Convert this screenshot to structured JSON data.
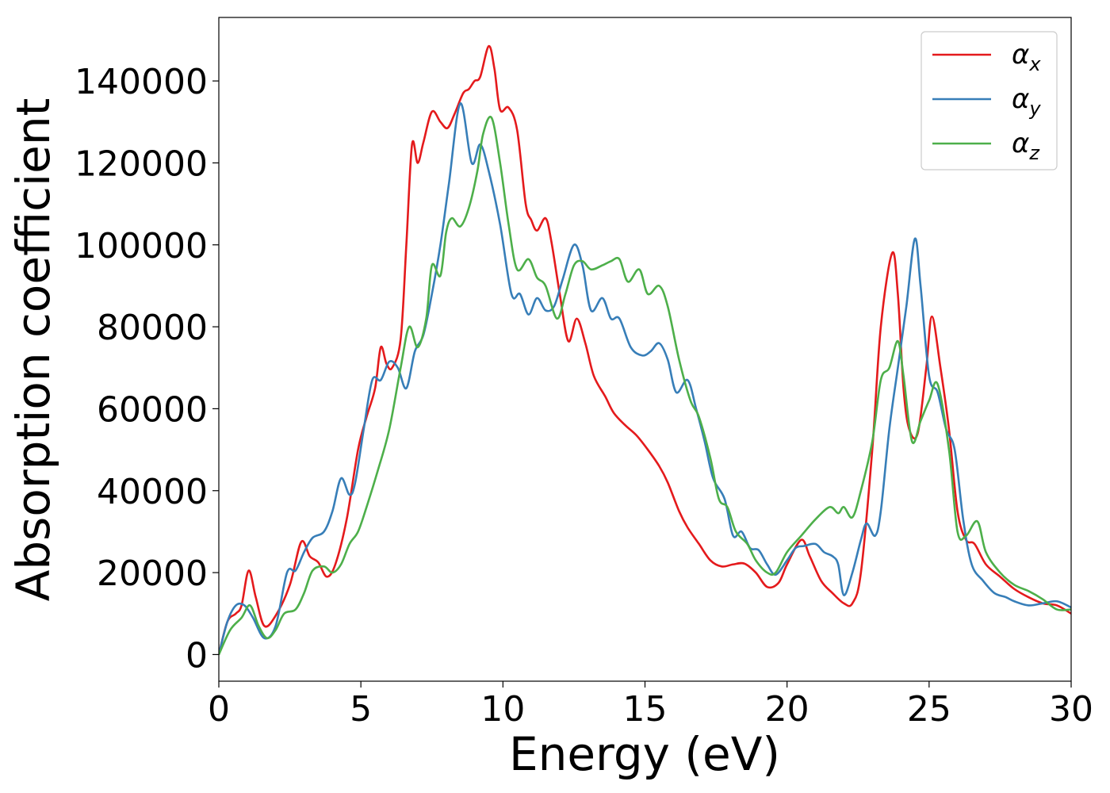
{
  "chart_data": {
    "type": "line",
    "xlabel": "Energy (eV)",
    "ylabel": "Absorption coefficient",
    "xlim": [
      0,
      30
    ],
    "ylim": [
      -6500,
      155500
    ],
    "xticks": [
      0,
      5,
      10,
      15,
      20,
      25,
      30
    ],
    "yticks": [
      0,
      20000,
      40000,
      60000,
      80000,
      100000,
      120000,
      140000
    ],
    "grid": false,
    "legend_position": "top-right",
    "series": [
      {
        "name": "αx",
        "symbol": "α",
        "subscript": "x",
        "color": "#e41a1c",
        "points": [
          [
            0,
            0
          ],
          [
            0.3,
            8000
          ],
          [
            0.6,
            10000
          ],
          [
            0.8,
            12000
          ],
          [
            1.05,
            20500
          ],
          [
            1.3,
            14000
          ],
          [
            1.6,
            7000
          ],
          [
            2.0,
            9500
          ],
          [
            2.5,
            17000
          ],
          [
            2.9,
            27500
          ],
          [
            3.2,
            24000
          ],
          [
            3.5,
            22500
          ],
          [
            3.8,
            19000
          ],
          [
            4.1,
            22000
          ],
          [
            4.5,
            33000
          ],
          [
            4.9,
            50000
          ],
          [
            5.2,
            58000
          ],
          [
            5.5,
            65000
          ],
          [
            5.7,
            75000
          ],
          [
            5.9,
            71000
          ],
          [
            6.1,
            70000
          ],
          [
            6.4,
            77000
          ],
          [
            6.6,
            100000
          ],
          [
            6.8,
            124500
          ],
          [
            7.0,
            120000
          ],
          [
            7.2,
            125000
          ],
          [
            7.5,
            132500
          ],
          [
            7.8,
            130000
          ],
          [
            8.05,
            128500
          ],
          [
            8.3,
            132000
          ],
          [
            8.6,
            137000
          ],
          [
            8.8,
            138000
          ],
          [
            9.0,
            140000
          ],
          [
            9.2,
            141000
          ],
          [
            9.5,
            148500
          ],
          [
            9.7,
            143000
          ],
          [
            9.9,
            133000
          ],
          [
            10.2,
            133500
          ],
          [
            10.5,
            128000
          ],
          [
            10.8,
            110000
          ],
          [
            11.0,
            106000
          ],
          [
            11.2,
            103500
          ],
          [
            11.5,
            106500
          ],
          [
            11.7,
            101000
          ],
          [
            12.0,
            88000
          ],
          [
            12.3,
            76500
          ],
          [
            12.6,
            82000
          ],
          [
            12.9,
            76000
          ],
          [
            13.2,
            68000
          ],
          [
            13.6,
            63000
          ],
          [
            13.9,
            59000
          ],
          [
            14.3,
            56000
          ],
          [
            14.7,
            53500
          ],
          [
            15.1,
            50000
          ],
          [
            15.5,
            46000
          ],
          [
            15.8,
            42000
          ],
          [
            16.2,
            35000
          ],
          [
            16.5,
            31000
          ],
          [
            16.9,
            27000
          ],
          [
            17.3,
            23000
          ],
          [
            17.7,
            21500
          ],
          [
            18.1,
            22000
          ],
          [
            18.5,
            22200
          ],
          [
            18.9,
            20000
          ],
          [
            19.3,
            16500
          ],
          [
            19.7,
            17500
          ],
          [
            20.0,
            22000
          ],
          [
            20.5,
            28000
          ],
          [
            20.8,
            24000
          ],
          [
            21.2,
            18000
          ],
          [
            21.6,
            15000
          ],
          [
            22.0,
            12500
          ],
          [
            22.3,
            12500
          ],
          [
            22.6,
            20000
          ],
          [
            23.0,
            50000
          ],
          [
            23.3,
            80000
          ],
          [
            23.7,
            98000
          ],
          [
            23.9,
            88000
          ],
          [
            24.1,
            65000
          ],
          [
            24.3,
            55000
          ],
          [
            24.6,
            54000
          ],
          [
            24.9,
            70000
          ],
          [
            25.1,
            82500
          ],
          [
            25.4,
            70000
          ],
          [
            25.7,
            55000
          ],
          [
            26.0,
            35000
          ],
          [
            26.3,
            28000
          ],
          [
            26.6,
            27000
          ],
          [
            27.0,
            22000
          ],
          [
            27.5,
            19000
          ],
          [
            28.0,
            16000
          ],
          [
            28.5,
            14000
          ],
          [
            29.0,
            12500
          ],
          [
            29.5,
            12000
          ],
          [
            30.0,
            10000
          ]
        ]
      },
      {
        "name": "αy",
        "symbol": "α",
        "subscript": "y",
        "color": "#377eb8",
        "points": [
          [
            0,
            0
          ],
          [
            0.3,
            8000
          ],
          [
            0.6,
            12000
          ],
          [
            0.9,
            12000
          ],
          [
            1.2,
            9000
          ],
          [
            1.6,
            4000
          ],
          [
            2.0,
            7000
          ],
          [
            2.4,
            20000
          ],
          [
            2.7,
            20500
          ],
          [
            3.0,
            25000
          ],
          [
            3.3,
            28500
          ],
          [
            3.7,
            30000
          ],
          [
            4.0,
            35000
          ],
          [
            4.3,
            43000
          ],
          [
            4.6,
            39000
          ],
          [
            4.8,
            42000
          ],
          [
            5.1,
            55000
          ],
          [
            5.4,
            67000
          ],
          [
            5.7,
            67000
          ],
          [
            6.0,
            71500
          ],
          [
            6.3,
            70000
          ],
          [
            6.6,
            65000
          ],
          [
            6.9,
            74000
          ],
          [
            7.2,
            78000
          ],
          [
            7.5,
            88000
          ],
          [
            7.8,
            100000
          ],
          [
            8.1,
            115000
          ],
          [
            8.5,
            134500
          ],
          [
            8.9,
            120000
          ],
          [
            9.2,
            124500
          ],
          [
            9.5,
            118000
          ],
          [
            9.9,
            105000
          ],
          [
            10.3,
            88000
          ],
          [
            10.6,
            88000
          ],
          [
            10.9,
            83000
          ],
          [
            11.2,
            87000
          ],
          [
            11.5,
            84000
          ],
          [
            11.8,
            85000
          ],
          [
            12.1,
            91500
          ],
          [
            12.5,
            100000
          ],
          [
            12.8,
            95000
          ],
          [
            13.1,
            84000
          ],
          [
            13.5,
            87000
          ],
          [
            13.8,
            82000
          ],
          [
            14.1,
            82000
          ],
          [
            14.5,
            75000
          ],
          [
            14.9,
            73000
          ],
          [
            15.2,
            74000
          ],
          [
            15.5,
            76000
          ],
          [
            15.8,
            72000
          ],
          [
            16.1,
            64000
          ],
          [
            16.5,
            67000
          ],
          [
            16.8,
            60000
          ],
          [
            17.1,
            52000
          ],
          [
            17.4,
            43000
          ],
          [
            17.8,
            38000
          ],
          [
            18.1,
            29000
          ],
          [
            18.4,
            30000
          ],
          [
            18.7,
            26000
          ],
          [
            19.0,
            25500
          ],
          [
            19.3,
            22000
          ],
          [
            19.6,
            19500
          ],
          [
            20.0,
            23000
          ],
          [
            20.3,
            26000
          ],
          [
            20.6,
            26500
          ],
          [
            21.0,
            27000
          ],
          [
            21.3,
            25000
          ],
          [
            21.6,
            24000
          ],
          [
            21.8,
            22000
          ],
          [
            22.0,
            14500
          ],
          [
            22.3,
            20000
          ],
          [
            22.6,
            28000
          ],
          [
            22.8,
            32000
          ],
          [
            23.1,
            29000
          ],
          [
            23.3,
            35000
          ],
          [
            23.6,
            55000
          ],
          [
            23.9,
            70000
          ],
          [
            24.2,
            85000
          ],
          [
            24.5,
            101500
          ],
          [
            24.7,
            90000
          ],
          [
            25.0,
            68000
          ],
          [
            25.3,
            64000
          ],
          [
            25.6,
            55000
          ],
          [
            25.9,
            50000
          ],
          [
            26.2,
            33000
          ],
          [
            26.5,
            22000
          ],
          [
            26.9,
            18000
          ],
          [
            27.3,
            15000
          ],
          [
            27.7,
            14000
          ],
          [
            28.0,
            13000
          ],
          [
            28.5,
            12000
          ],
          [
            29.0,
            12500
          ],
          [
            29.5,
            13000
          ],
          [
            30.0,
            11500
          ]
        ]
      },
      {
        "name": "αz",
        "symbol": "α",
        "subscript": "z",
        "color": "#4daf4a",
        "points": [
          [
            0,
            0
          ],
          [
            0.4,
            6000
          ],
          [
            0.8,
            9000
          ],
          [
            1.1,
            12000
          ],
          [
            1.4,
            7000
          ],
          [
            1.7,
            4000
          ],
          [
            2.0,
            6000
          ],
          [
            2.3,
            10000
          ],
          [
            2.7,
            11000
          ],
          [
            3.0,
            15000
          ],
          [
            3.3,
            20500
          ],
          [
            3.7,
            21500
          ],
          [
            4.0,
            20000
          ],
          [
            4.3,
            22000
          ],
          [
            4.6,
            27000
          ],
          [
            4.9,
            30000
          ],
          [
            5.2,
            36000
          ],
          [
            5.6,
            45000
          ],
          [
            6.0,
            55000
          ],
          [
            6.4,
            70000
          ],
          [
            6.7,
            80000
          ],
          [
            7.0,
            75000
          ],
          [
            7.3,
            82000
          ],
          [
            7.5,
            95000
          ],
          [
            7.8,
            92500
          ],
          [
            8.0,
            103000
          ],
          [
            8.2,
            106500
          ],
          [
            8.5,
            104500
          ],
          [
            8.8,
            109000
          ],
          [
            9.1,
            118000
          ],
          [
            9.3,
            127000
          ],
          [
            9.6,
            131000
          ],
          [
            9.9,
            120000
          ],
          [
            10.2,
            105000
          ],
          [
            10.5,
            94000
          ],
          [
            10.9,
            96500
          ],
          [
            11.2,
            92000
          ],
          [
            11.5,
            90000
          ],
          [
            11.9,
            82000
          ],
          [
            12.2,
            88000
          ],
          [
            12.5,
            95000
          ],
          [
            12.8,
            96000
          ],
          [
            13.1,
            94000
          ],
          [
            13.5,
            95000
          ],
          [
            13.8,
            96000
          ],
          [
            14.1,
            96500
          ],
          [
            14.4,
            91000
          ],
          [
            14.8,
            94000
          ],
          [
            15.1,
            88000
          ],
          [
            15.5,
            90000
          ],
          [
            15.8,
            85000
          ],
          [
            16.2,
            72000
          ],
          [
            16.6,
            62000
          ],
          [
            16.9,
            58000
          ],
          [
            17.3,
            48000
          ],
          [
            17.6,
            38000
          ],
          [
            17.9,
            36000
          ],
          [
            18.2,
            30000
          ],
          [
            18.6,
            27000
          ],
          [
            18.9,
            23000
          ],
          [
            19.3,
            20000
          ],
          [
            19.6,
            20000
          ],
          [
            20.0,
            25000
          ],
          [
            20.5,
            29000
          ],
          [
            21.0,
            33000
          ],
          [
            21.5,
            36000
          ],
          [
            21.8,
            34500
          ],
          [
            22.0,
            36000
          ],
          [
            22.3,
            33500
          ],
          [
            22.6,
            40000
          ],
          [
            23.0,
            52000
          ],
          [
            23.3,
            67000
          ],
          [
            23.6,
            70000
          ],
          [
            23.9,
            76500
          ],
          [
            24.1,
            68000
          ],
          [
            24.4,
            52000
          ],
          [
            24.7,
            57000
          ],
          [
            25.0,
            62000
          ],
          [
            25.3,
            66000
          ],
          [
            25.7,
            50000
          ],
          [
            26.0,
            30000
          ],
          [
            26.3,
            29000
          ],
          [
            26.7,
            32500
          ],
          [
            27.0,
            25000
          ],
          [
            27.5,
            20000
          ],
          [
            28.0,
            17000
          ],
          [
            28.5,
            15500
          ],
          [
            29.0,
            13500
          ],
          [
            29.5,
            11000
          ],
          [
            30.0,
            11000
          ]
        ]
      }
    ]
  }
}
